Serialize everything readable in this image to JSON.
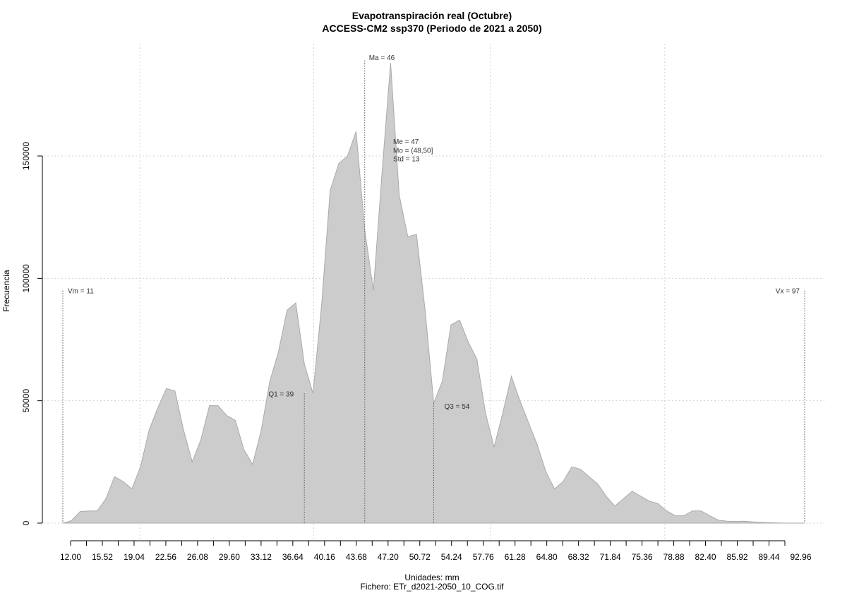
{
  "chart_data": {
    "type": "area",
    "title": "Evapotranspiración real (Octubre)",
    "subtitle": "ACCESS-CM2 ssp370 (Periodo de 2021 a 2050)",
    "xlabel": "Unidades: mm",
    "caption": "Fichero: ETr_d2021-2050_10_COG.tif",
    "ylabel": "Frecuencia",
    "xlim": [
      10.5,
      98.5
    ],
    "ylim": [
      0,
      185000
    ],
    "grid": true,
    "x_ticks": [
      12.0,
      15.52,
      19.04,
      22.56,
      26.08,
      29.6,
      33.12,
      36.64,
      40.16,
      43.68,
      47.2,
      50.72,
      54.24,
      57.76,
      61.28,
      64.8,
      68.32,
      71.84,
      75.36,
      78.88,
      82.4,
      85.92,
      89.44,
      92.96
    ],
    "x_tick_labels": [
      "12.00",
      "15.52",
      "19.04",
      "22.56",
      "26.08",
      "29.60",
      "33.12",
      "36.64",
      "40.16",
      "43.68",
      "47.20",
      "50.72",
      "54.24",
      "57.76",
      "61.28",
      "64.80",
      "68.32",
      "71.84",
      "75.36",
      "78.88",
      "82.40",
      "85.92",
      "89.44",
      "92.96"
    ],
    "y_ticks": [
      0,
      50000,
      100000,
      150000
    ],
    "y_tick_labels": [
      "0",
      "50000",
      "100000",
      "150000"
    ],
    "x_gridlines": [
      19.94,
      40.09,
      60.55,
      80.78
    ],
    "series": [
      {
        "x": [
          11.0,
          11.5,
          12.0,
          13.0,
          14.0,
          15.0,
          16.0,
          17.0,
          18.0,
          19.0,
          20.0,
          21.0,
          22.0,
          23.0,
          24.0,
          25.0,
          26.0,
          27.0,
          28.0,
          29.0,
          30.0,
          31.0,
          32.0,
          33.0,
          34.0,
          35.0,
          36.0,
          37.0,
          38.0,
          39.0,
          40.0,
          41.0,
          42.0,
          43.0,
          44.0,
          45.0,
          46.0,
          47.0,
          48.0,
          49.0,
          50.0,
          51.0,
          52.0,
          53.0,
          54.0,
          55.0,
          56.0,
          57.0,
          58.0,
          59.0,
          60.0,
          61.0,
          62.0,
          63.0,
          64.0,
          65.0,
          66.0,
          67.0,
          68.0,
          69.0,
          70.0,
          71.0,
          72.0,
          73.0,
          74.0,
          75.0,
          76.0,
          77.0,
          78.0,
          79.0,
          80.0,
          81.0,
          82.0,
          83.0,
          84.0,
          85.0,
          86.0,
          87.0,
          88.0,
          89.0,
          90.0,
          91.0,
          92.0,
          93.0,
          94.0,
          95.0,
          96.0,
          97.0
        ],
        "values": [
          0,
          500,
          1000,
          4700,
          5000,
          5000,
          10000,
          19000,
          17000,
          14000,
          23000,
          38000,
          47000,
          55000,
          54000,
          38000,
          25000,
          34000,
          48000,
          48000,
          44000,
          42000,
          30000,
          24000,
          38000,
          58000,
          70000,
          87000,
          90000,
          65000,
          53000,
          89000,
          136000,
          147000,
          150000,
          160000,
          120000,
          95000,
          143000,
          188000,
          134000,
          117000,
          118000,
          87000,
          49000,
          58000,
          81000,
          83000,
          74000,
          67000,
          45000,
          31000,
          45000,
          60000,
          50000,
          41000,
          32000,
          21000,
          14000,
          17000,
          23000,
          22000,
          19000,
          16000,
          11000,
          7000,
          10000,
          13000,
          11000,
          9000,
          8000,
          5000,
          3000,
          3000,
          5000,
          5000,
          3000,
          1200,
          800,
          700,
          800,
          500,
          300,
          150,
          50,
          0,
          0,
          0
        ]
      }
    ],
    "annotations": [
      {
        "label": "Vm = 11",
        "x": 11,
        "y": 95000
      },
      {
        "label": "Vx = 97",
        "x": 97,
        "y": 95000
      },
      {
        "label": "Q1 = 39",
        "x": 39,
        "y": 53000
      },
      {
        "label": "Q3 = 54",
        "x": 54,
        "y": 49000
      },
      {
        "label": "Ma = 46",
        "x": 46,
        "y": 189000
      },
      {
        "label": "Me = 47",
        "x": 47,
        "y": 156000
      },
      {
        "label": "Mo = (48,50]",
        "x": 47,
        "y": 152500
      },
      {
        "label": "Std = 13",
        "x": 47,
        "y": 149000
      }
    ],
    "colors": {
      "area_fill": "#cccccc",
      "area_stroke": "#aaaaaa",
      "grid": "#d3d3d3",
      "marker_line": "#555555"
    }
  }
}
